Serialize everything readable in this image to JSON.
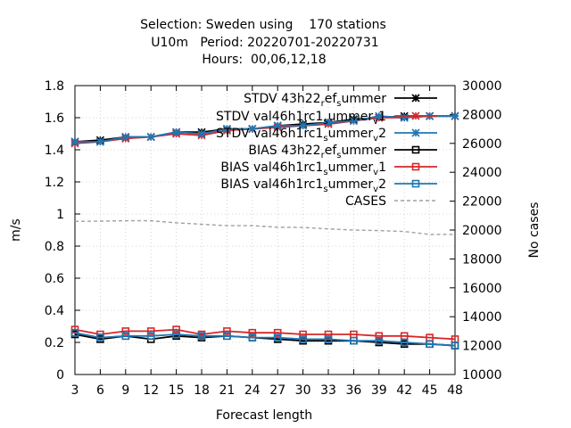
{
  "chart_data": {
    "type": "line",
    "title_lines": [
      "Selection: Sweden using    170 stations",
      "U10m   Period: 20220701-20220731",
      "Hours:  00,06,12,18"
    ],
    "xlabel": "Forecast length",
    "ylabel": "m/s",
    "y2label": "No cases",
    "x": [
      3,
      6,
      9,
      12,
      15,
      18,
      21,
      24,
      27,
      30,
      33,
      36,
      39,
      42,
      45,
      48
    ],
    "xticks": [
      "3",
      "6",
      "9",
      "12",
      "15",
      "18",
      "21",
      "24",
      "27",
      "30",
      "33",
      "36",
      "39",
      "42",
      "45",
      "48"
    ],
    "xlim": [
      3,
      48
    ],
    "ylim": [
      0,
      1.8
    ],
    "yticks": [
      "0",
      "0.2",
      "0.4",
      "0.6",
      "0.8",
      "1",
      "1.2",
      "1.4",
      "1.6",
      "1.8"
    ],
    "y2lim": [
      10000,
      30000
    ],
    "y2ticks": [
      "10000",
      "12000",
      "14000",
      "16000",
      "18000",
      "20000",
      "22000",
      "24000",
      "26000",
      "28000",
      "30000"
    ],
    "grid": "dotted",
    "legend_position": "top-right",
    "series": [
      {
        "label_main": "STDV 43h22",
        "sub1": "r",
        "mid1": "ef",
        "sub2": "s",
        "tail": "ummer",
        "color": "#000000",
        "marker": "star",
        "axis": "y1",
        "values": [
          1.45,
          1.46,
          1.48,
          1.48,
          1.51,
          1.51,
          1.53,
          1.53,
          1.55,
          1.56,
          1.57,
          1.59,
          1.6,
          1.61,
          1.61,
          1.61
        ]
      },
      {
        "label_main": "STDV val46h1rc1",
        "sub1": "s",
        "mid1": "ummer",
        "sub2": "v",
        "tail": "1",
        "color": "#d62728",
        "marker": "star",
        "axis": "y1",
        "values": [
          1.44,
          1.45,
          1.47,
          1.48,
          1.5,
          1.49,
          1.52,
          1.53,
          1.54,
          1.55,
          1.56,
          1.58,
          1.6,
          1.6,
          1.61,
          1.61
        ]
      },
      {
        "label_main": "STDV val46h1rc1",
        "sub1": "s",
        "mid1": "ummer",
        "sub2": "v",
        "tail": "2",
        "color": "#1f77b4",
        "marker": "star",
        "axis": "y1",
        "values": [
          1.45,
          1.45,
          1.48,
          1.48,
          1.51,
          1.5,
          1.53,
          1.53,
          1.55,
          1.55,
          1.57,
          1.58,
          1.61,
          1.6,
          1.61,
          1.61
        ]
      },
      {
        "label_main": "BIAS 43h22",
        "sub1": "r",
        "mid1": "ef",
        "sub2": "s",
        "tail": "ummer",
        "color": "#000000",
        "marker": "square",
        "axis": "y1",
        "values": [
          0.25,
          0.22,
          0.24,
          0.22,
          0.24,
          0.23,
          0.24,
          0.23,
          0.22,
          0.21,
          0.21,
          0.21,
          0.2,
          0.19,
          0.19,
          0.18
        ]
      },
      {
        "label_main": "BIAS val46h1rc1",
        "sub1": "s",
        "mid1": "ummer",
        "sub2": "v",
        "tail": "1",
        "color": "#d62728",
        "marker": "square",
        "axis": "y1",
        "values": [
          0.28,
          0.25,
          0.27,
          0.27,
          0.28,
          0.25,
          0.27,
          0.26,
          0.26,
          0.25,
          0.25,
          0.25,
          0.24,
          0.24,
          0.23,
          0.22
        ]
      },
      {
        "label_main": "BIAS val46h1rc1",
        "sub1": "s",
        "mid1": "ummer",
        "sub2": "v",
        "tail": "2",
        "color": "#1f77b4",
        "marker": "square",
        "axis": "y1",
        "values": [
          0.26,
          0.23,
          0.24,
          0.24,
          0.25,
          0.24,
          0.24,
          0.23,
          0.23,
          0.22,
          0.22,
          0.21,
          0.21,
          0.2,
          0.19,
          0.18
        ]
      },
      {
        "label_main": "CASES",
        "sub1": "",
        "mid1": "",
        "sub2": "",
        "tail": "",
        "color": "#a0a0a0",
        "marker": "none",
        "dashed": true,
        "axis": "y2",
        "values": [
          20600,
          20620,
          20640,
          20640,
          20500,
          20400,
          20300,
          20300,
          20200,
          20180,
          20080,
          20000,
          19960,
          19900,
          19700,
          19700
        ]
      }
    ]
  }
}
